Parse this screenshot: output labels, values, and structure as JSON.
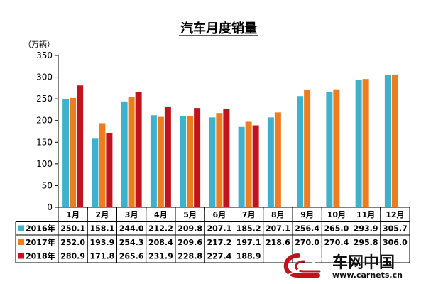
{
  "chart_data": {
    "type": "bar",
    "title": "汽车月度销量",
    "ylabel": "（万辆）",
    "xlabel": "",
    "ylim": [
      0,
      350
    ],
    "yticks": [
      0,
      50,
      100,
      150,
      200,
      250,
      300,
      350
    ],
    "categories": [
      "1月",
      "2月",
      "3月",
      "4月",
      "5月",
      "6月",
      "7月",
      "8月",
      "9月",
      "10月",
      "11月",
      "12月"
    ],
    "grid": false,
    "legend": "table-left",
    "series": [
      {
        "name": "2016年",
        "color": "#3eb1cc",
        "values": [
          250.1,
          158.1,
          244.0,
          212.2,
          209.8,
          207.1,
          185.2,
          207.1,
          256.4,
          265.0,
          293.9,
          305.7
        ],
        "table_values": [
          "250.1",
          "158.1",
          "244.0",
          "212.2",
          "209.8",
          "207.1",
          "185.2",
          "207.1",
          "256.4",
          "265.0",
          "293.9",
          "305.7"
        ]
      },
      {
        "name": "2017年",
        "color": "#ee7d1f",
        "values": [
          252.0,
          193.9,
          254.3,
          208.4,
          209.6,
          217.2,
          197.1,
          218.6,
          270.0,
          270.4,
          295.8,
          306.0
        ],
        "table_values": [
          "252.0",
          "193.9",
          "254.3",
          "208.4",
          "209.6",
          "217.2",
          "197.1",
          "218.6",
          "270.0",
          "270.4",
          "295.8",
          "306.0"
        ]
      },
      {
        "name": "2018年",
        "color": "#c1131e",
        "values": [
          280.9,
          171.8,
          265.6,
          231.9,
          228.8,
          227.4,
          188.9,
          null,
          null,
          null,
          null,
          null
        ],
        "table_values": [
          "280.9",
          "171.8",
          "265.6",
          "231.9",
          "228.8",
          "227.4",
          "188.9",
          "",
          "",
          "",
          "",
          ""
        ]
      }
    ]
  },
  "watermark": {
    "logo_text": "车网中国",
    "url_text": "www.carnets.cn",
    "color": "#c1131e"
  }
}
